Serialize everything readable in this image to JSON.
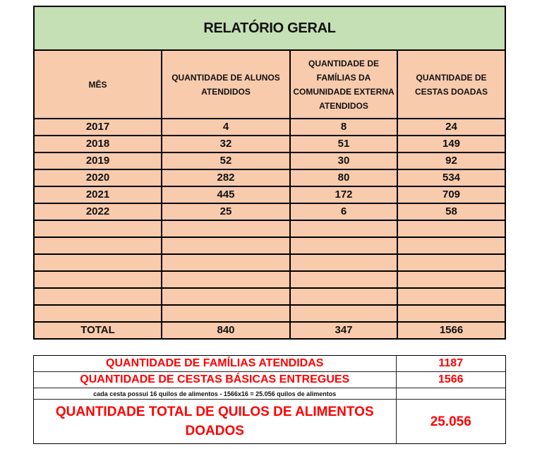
{
  "report": {
    "title": "RELATÓRIO GERAL",
    "colors": {
      "title_bg": "#c5e0b4",
      "table_bg": "#f8cbad",
      "summary_text": "#ff0000"
    },
    "headers": [
      "MÊS",
      "QUANTIDADE DE ALUNOS ATENDIDOS",
      "QUANTIDADE DE FAMÍLIAS DA COMUNIDADE EXTERNA ATENDIDOS",
      "QUANTIDADE DE CESTAS DOADAS"
    ],
    "rows": [
      [
        "2017",
        "4",
        "8",
        "24"
      ],
      [
        "2018",
        "32",
        "51",
        "149"
      ],
      [
        "2019",
        "52",
        "30",
        "92"
      ],
      [
        "2020",
        "282",
        "80",
        "534"
      ],
      [
        "2021",
        "445",
        "172",
        "709"
      ],
      [
        "2022",
        "25",
        "6",
        "58"
      ],
      [
        "",
        "",
        "",
        ""
      ],
      [
        "",
        "",
        "",
        ""
      ],
      [
        "",
        "",
        "",
        ""
      ],
      [
        "",
        "",
        "",
        ""
      ],
      [
        "",
        "",
        "",
        ""
      ],
      [
        "",
        "",
        "",
        ""
      ]
    ],
    "total": [
      "TOTAL",
      "840",
      "347",
      "1566"
    ]
  },
  "summary": {
    "families_label": "QUANTIDADE DE FAMÍLIAS ATENDIDAS",
    "families_value": "1187",
    "baskets_label": "QUANTIDADE DE CESTAS BÁSICAS ENTREGUES",
    "baskets_value": "1566",
    "note": "cada cesta possui 16 quilos de alimentos - 1566x16 = 25.056 quilos de alimentos",
    "note_value": "",
    "kilos_label": "QUANTIDADE TOTAL DE QUILOS DE ALIMENTOS DOADOS",
    "kilos_value": "25.056"
  }
}
